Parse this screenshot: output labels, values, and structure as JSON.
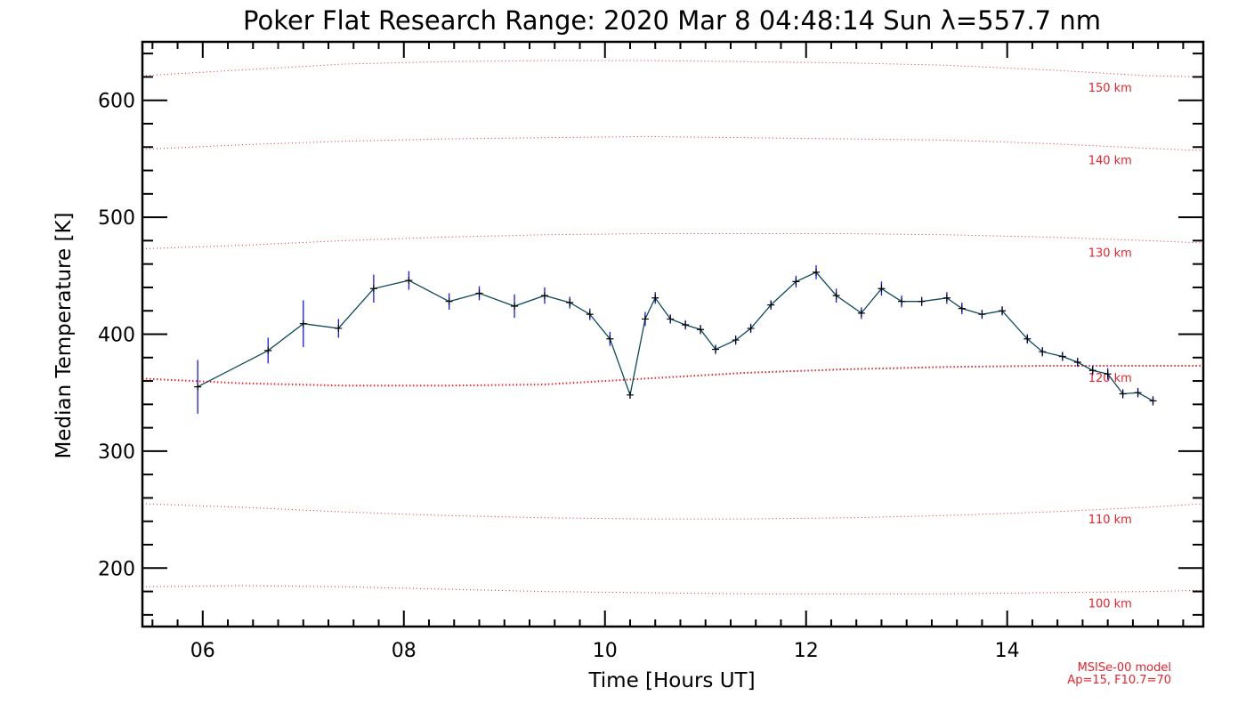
{
  "chart_data": {
    "type": "line",
    "title": "Poker Flat Research Range: 2020 Mar  8 04:48:14 Sun λ=557.7 nm",
    "xlabel": "Time [Hours UT]",
    "ylabel": "Median Temperature [K]",
    "xlim": [
      5.4,
      15.95
    ],
    "ylim": [
      150,
      650
    ],
    "x_ticks": [
      6,
      8,
      10,
      12,
      14
    ],
    "x_tick_labels": [
      "06",
      "08",
      "10",
      "12",
      "14"
    ],
    "y_ticks": [
      200,
      300,
      400,
      500,
      600
    ],
    "y_tick_labels": [
      "200",
      "300",
      "400",
      "500",
      "600"
    ],
    "grid": false,
    "series": [
      {
        "colors": {
          "line": "#0b4a57",
          "marker": "#000000",
          "error": "#1414ff"
        },
        "x": [
          5.95,
          6.65,
          7.0,
          7.35,
          7.7,
          8.05,
          8.45,
          8.75,
          9.1,
          9.4,
          9.65,
          9.85,
          10.05,
          10.25,
          10.4,
          10.5,
          10.65,
          10.8,
          10.95,
          11.1,
          11.3,
          11.45,
          11.65,
          11.9,
          12.1,
          12.3,
          12.55,
          12.75,
          12.95,
          13.15,
          13.4,
          13.55,
          13.75,
          13.95,
          14.2,
          14.35,
          14.55,
          14.7,
          14.85,
          15.0,
          15.15,
          15.3,
          15.45
        ],
        "y": [
          355,
          386,
          409,
          405,
          439,
          446,
          428,
          435,
          424,
          433,
          427,
          417,
          396,
          348,
          413,
          431,
          413,
          408,
          404,
          387,
          395,
          405,
          425,
          445,
          453,
          433,
          418,
          439,
          428,
          428,
          431,
          422,
          417,
          420,
          396,
          385,
          381,
          376,
          369,
          366,
          349,
          350,
          343
        ],
        "yerr": [
          23,
          11,
          20,
          8,
          12,
          8,
          7,
          6,
          10,
          7,
          5,
          5,
          6,
          3,
          6,
          5,
          4,
          4,
          4,
          4,
          4,
          4,
          4,
          5,
          6,
          6,
          5,
          6,
          5,
          4,
          5,
          5,
          4,
          4,
          4,
          4,
          4,
          4,
          4,
          5,
          4,
          4,
          4
        ]
      }
    ],
    "altitude_curves": {
      "color": "#e8242c",
      "x": [
        5.4,
        6.4,
        7.4,
        8.4,
        9.4,
        10.4,
        11.4,
        12.4,
        13.4,
        14.4,
        15.4,
        15.95
      ],
      "curves": [
        {
          "label": "150 km",
          "y": [
            621,
            626,
            631,
            633,
            634,
            634,
            633,
            632,
            630,
            626,
            621,
            620
          ]
        },
        {
          "label": "140 km",
          "y": [
            558,
            562,
            565,
            567,
            568,
            569,
            568,
            567,
            566,
            563,
            559,
            557
          ]
        },
        {
          "label": "130 km",
          "y": [
            473,
            476,
            480,
            483,
            485,
            486,
            486,
            486,
            485,
            483,
            480,
            478
          ]
        },
        {
          "label": "120 km",
          "y": [
            362,
            358,
            356,
            356,
            357,
            362,
            367,
            370,
            372,
            373,
            373,
            373
          ]
        },
        {
          "label": "110 km",
          "y": [
            255,
            252,
            248,
            245,
            243,
            242,
            242,
            243,
            245,
            248,
            252,
            255
          ]
        },
        {
          "label": "100 km",
          "y": [
            184,
            185,
            184,
            182,
            180,
            179,
            178,
            178,
            178,
            179,
            180,
            181
          ]
        }
      ]
    },
    "model_note": [
      "MSISe-00 model",
      "Ap=15, F10.7=70"
    ]
  }
}
